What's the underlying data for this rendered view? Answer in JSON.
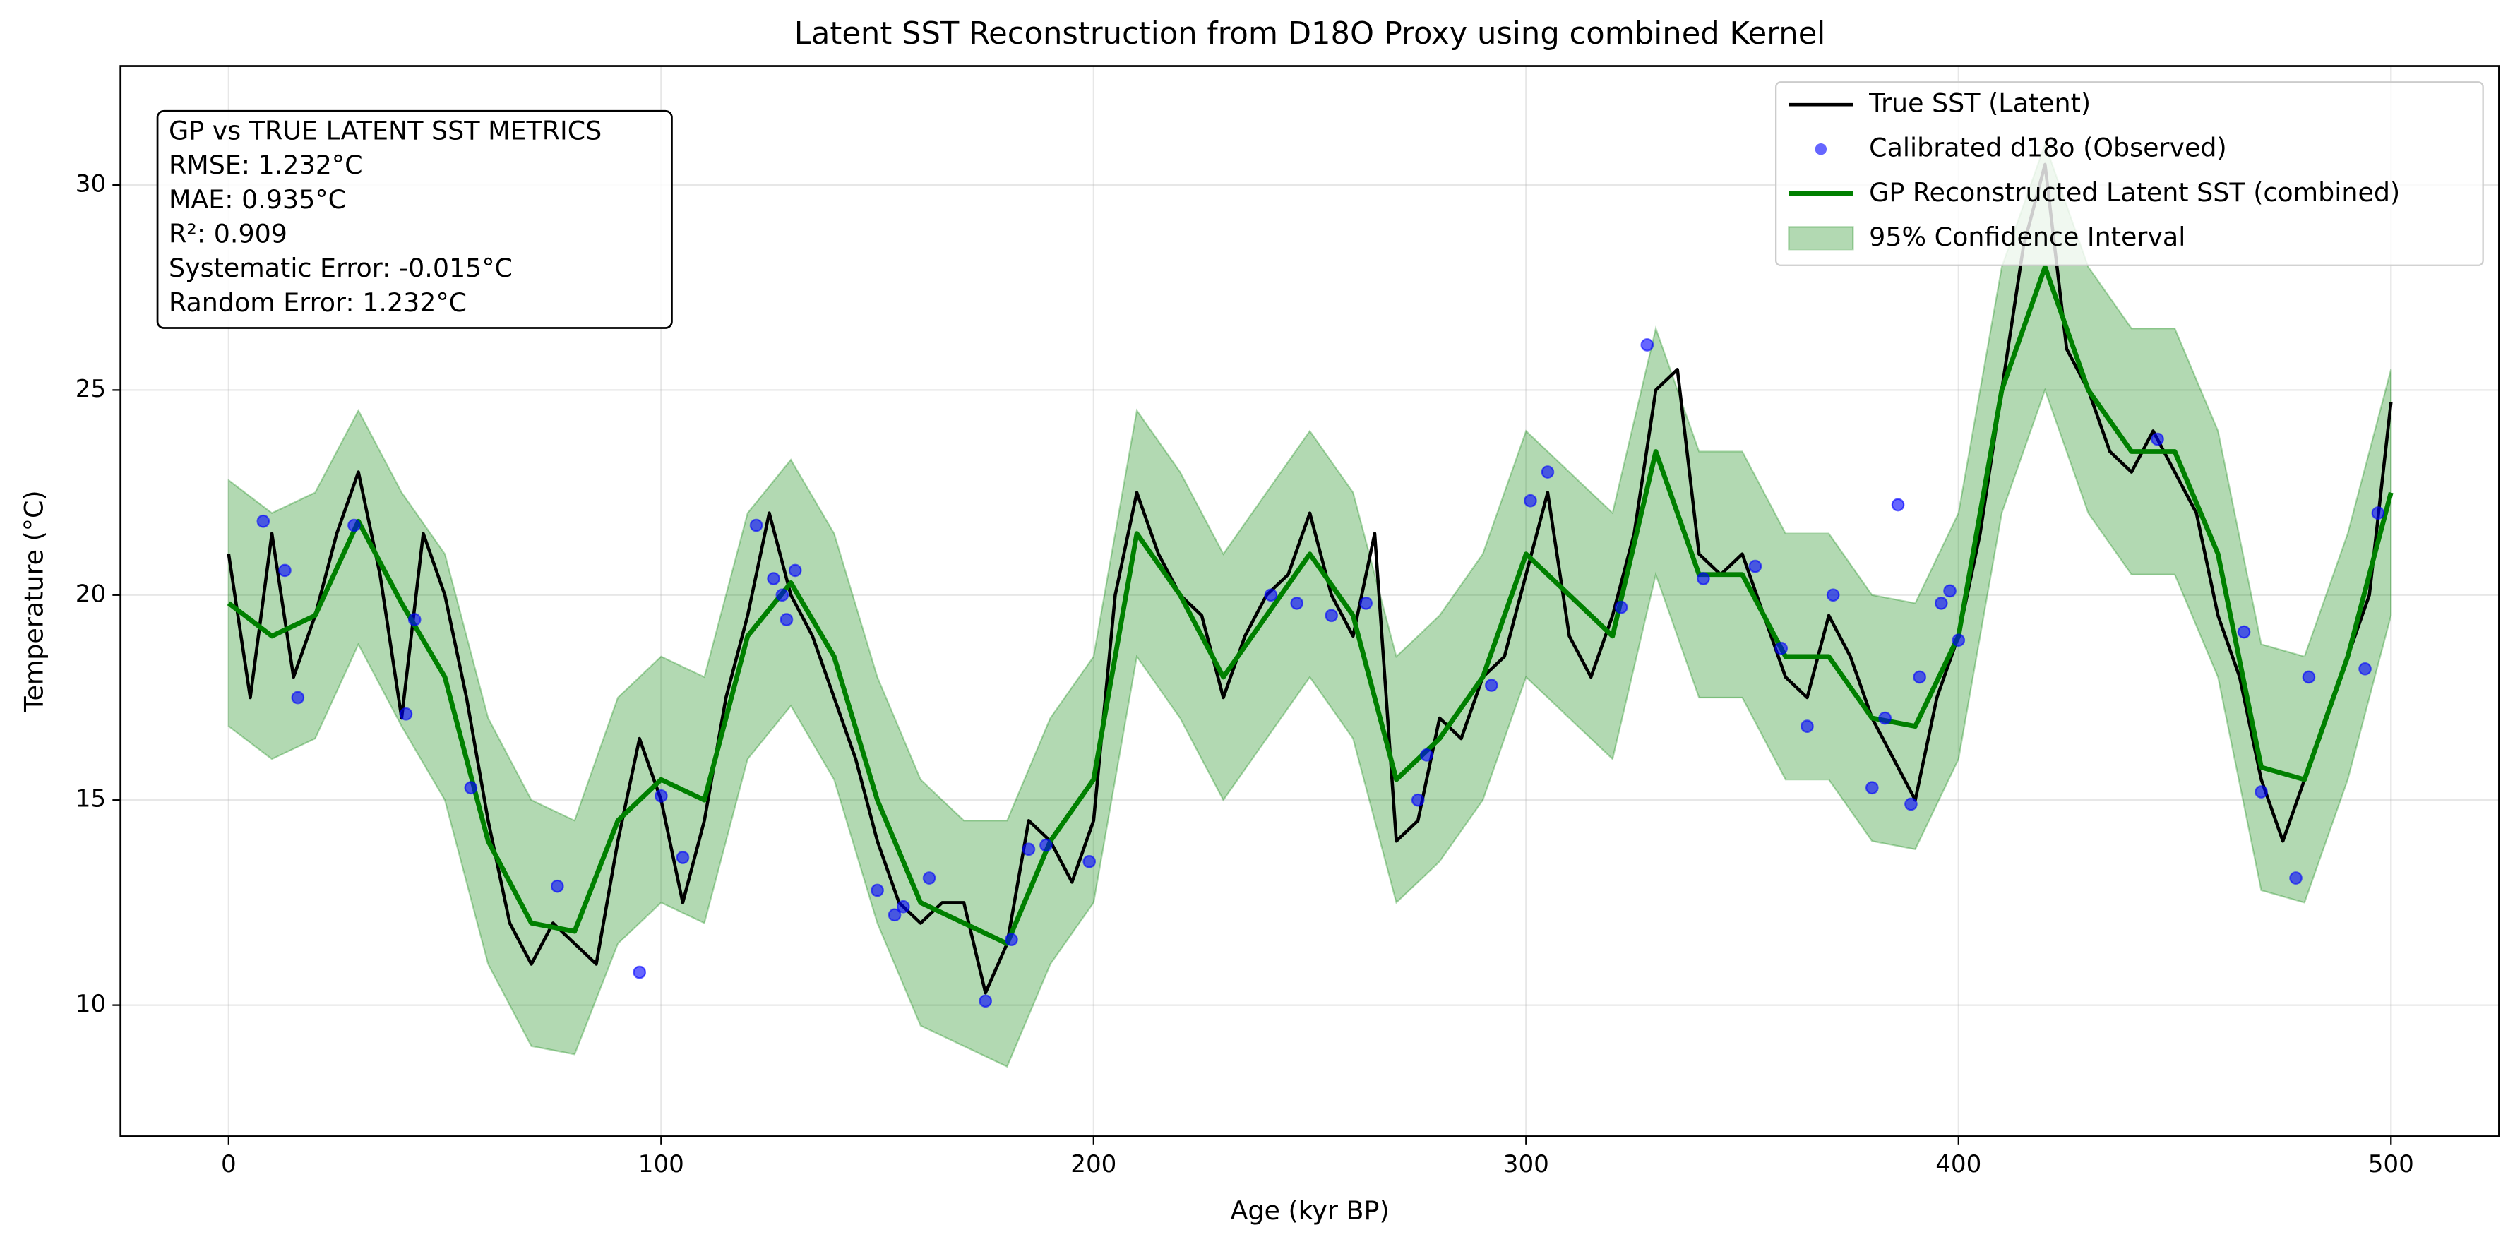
{
  "chart_data": {
    "type": "line",
    "title": "Latent SST Reconstruction from D18O Proxy using combined Kernel",
    "x_label": "Age (kyr BP)",
    "y_label": "Temperature (°C)",
    "xlim": [
      -25,
      525
    ],
    "ylim": [
      6.8,
      32.9
    ],
    "xticks": [
      0,
      100,
      200,
      300,
      400,
      500
    ],
    "yticks": [
      10,
      15,
      20,
      25,
      30
    ],
    "grid": true,
    "legend": "upper right",
    "annotations": [
      "GP vs TRUE LATENT SST METRICS",
      "RMSE: 1.232°C",
      "MAE: 0.935°C",
      "R²: 0.909",
      "Systematic Error: -0.015°C",
      "Random Error: 1.232°C"
    ],
    "series": [
      {
        "name": "True SST (Latent)",
        "kind": "line",
        "color": "#000000",
        "x": [
          0,
          5,
          10,
          15,
          20,
          25,
          30,
          35,
          40,
          45,
          50,
          55,
          60,
          65,
          70,
          75,
          80,
          85,
          90,
          95,
          100,
          105,
          110,
          115,
          120,
          125,
          130,
          135,
          140,
          145,
          150,
          155,
          160,
          165,
          170,
          175,
          180,
          185,
          190,
          195,
          200,
          205,
          210,
          215,
          220,
          225,
          230,
          235,
          240,
          245,
          250,
          255,
          260,
          265,
          270,
          275,
          280,
          285,
          290,
          295,
          300,
          305,
          310,
          315,
          320,
          325,
          330,
          335,
          340,
          345,
          350,
          355,
          360,
          365,
          370,
          375,
          380,
          385,
          390,
          395,
          400,
          405,
          410,
          415,
          420,
          425,
          430,
          435,
          440,
          445,
          450,
          455,
          460,
          465,
          470,
          475,
          480,
          485,
          490,
          495,
          500
        ],
        "values": [
          21.0,
          17.5,
          21.5,
          18.0,
          19.5,
          21.5,
          23.0,
          20.5,
          17.0,
          21.5,
          20.0,
          17.5,
          14.5,
          12.0,
          11.0,
          12.0,
          11.5,
          11.0,
          14.0,
          16.5,
          15.0,
          12.5,
          14.5,
          17.5,
          19.5,
          22.0,
          20.0,
          19.0,
          17.5,
          16.0,
          14.0,
          12.5,
          12.0,
          12.5,
          12.5,
          10.3,
          11.5,
          14.5,
          14.0,
          13.0,
          14.5,
          20.0,
          22.5,
          21.0,
          20.0,
          19.5,
          17.5,
          19.0,
          20.0,
          20.5,
          22.0,
          20.0,
          19.0,
          21.5,
          14.0,
          14.5,
          17.0,
          16.5,
          18.0,
          18.5,
          20.5,
          22.5,
          19.0,
          18.0,
          19.5,
          21.5,
          25.0,
          25.5,
          21.0,
          20.5,
          21.0,
          19.5,
          18.0,
          17.5,
          19.5,
          18.5,
          17.0,
          16.0,
          15.0,
          17.5,
          19.0,
          21.5,
          25.0,
          28.5,
          30.5,
          26.0,
          25.0,
          23.5,
          23.0,
          24.0,
          23.0,
          22.0,
          19.5,
          18.0,
          15.5,
          14.0,
          15.5,
          17.0,
          18.5,
          20.0,
          24.7
        ]
      },
      {
        "name": "Calibrated d18o (Observed)",
        "kind": "scatter",
        "color": "#0000ff",
        "x": [
          8,
          13,
          16,
          29,
          41,
          43,
          56,
          76,
          95,
          100,
          105,
          122,
          126,
          128,
          129,
          131,
          150,
          154,
          156,
          162,
          175,
          181,
          185,
          189,
          199,
          241,
          247,
          255,
          263,
          275,
          277,
          292,
          301,
          305,
          322,
          328,
          341,
          353,
          359,
          365,
          371,
          380,
          383,
          386,
          389,
          391,
          396,
          398,
          400,
          446,
          466,
          470,
          478,
          481,
          494,
          497
        ],
        "values": [
          21.8,
          20.6,
          17.5,
          21.7,
          17.1,
          19.4,
          15.3,
          12.9,
          10.8,
          15.1,
          13.6,
          21.7,
          20.4,
          20.0,
          19.4,
          20.6,
          12.8,
          12.2,
          12.4,
          13.1,
          10.1,
          11.6,
          13.8,
          13.9,
          13.5,
          20.0,
          19.8,
          19.5,
          19.8,
          15.0,
          16.1,
          17.8,
          22.3,
          23.0,
          19.7,
          26.1,
          20.4,
          20.7,
          18.7,
          16.8,
          20.0,
          15.3,
          17.0,
          22.2,
          14.9,
          18.0,
          19.8,
          20.1,
          18.9,
          23.8,
          19.1,
          15.2,
          13.1,
          18.0,
          18.2,
          22.0
        ]
      },
      {
        "name": "GP Reconstructed Latent SST (combined)",
        "kind": "line",
        "color": "#008000",
        "x": [
          0,
          10,
          20,
          30,
          40,
          50,
          60,
          70,
          80,
          90,
          100,
          110,
          120,
          130,
          140,
          150,
          160,
          170,
          180,
          190,
          200,
          210,
          220,
          230,
          240,
          250,
          260,
          270,
          280,
          290,
          300,
          310,
          320,
          330,
          340,
          350,
          360,
          370,
          380,
          390,
          400,
          410,
          420,
          430,
          440,
          450,
          460,
          470,
          480,
          490,
          500
        ],
        "values": [
          19.8,
          19.0,
          19.5,
          21.8,
          19.8,
          18.0,
          14.0,
          12.0,
          11.8,
          14.5,
          15.5,
          15.0,
          19.0,
          20.3,
          18.5,
          15.0,
          12.5,
          12.0,
          11.5,
          14.0,
          15.5,
          21.5,
          20.0,
          18.0,
          19.5,
          21.0,
          19.5,
          15.5,
          16.5,
          18.0,
          21.0,
          20.0,
          19.0,
          23.5,
          20.5,
          20.5,
          18.5,
          18.5,
          17.0,
          16.8,
          19.0,
          25.0,
          28.0,
          25.0,
          23.5,
          23.5,
          21.0,
          15.8,
          15.5,
          18.5,
          22.5
        ]
      },
      {
        "name": "95% Confidence Interval",
        "kind": "band",
        "color": "#008000",
        "x": [
          0,
          10,
          20,
          30,
          40,
          50,
          60,
          70,
          80,
          90,
          100,
          110,
          120,
          130,
          140,
          150,
          160,
          170,
          180,
          190,
          200,
          210,
          220,
          230,
          240,
          250,
          260,
          270,
          280,
          290,
          300,
          310,
          320,
          330,
          340,
          350,
          360,
          370,
          380,
          390,
          400,
          410,
          420,
          430,
          440,
          450,
          460,
          470,
          480,
          490,
          500
        ],
        "lower": [
          16.8,
          16.0,
          16.5,
          18.8,
          16.8,
          15.0,
          11.0,
          9.0,
          8.8,
          11.5,
          12.5,
          12.0,
          16.0,
          17.3,
          15.5,
          12.0,
          9.5,
          9.0,
          8.5,
          11.0,
          12.5,
          18.5,
          17.0,
          15.0,
          16.5,
          18.0,
          16.5,
          12.5,
          13.5,
          15.0,
          18.0,
          17.0,
          16.0,
          20.5,
          17.5,
          17.5,
          15.5,
          15.5,
          14.0,
          13.8,
          16.0,
          22.0,
          25.0,
          22.0,
          20.5,
          20.5,
          18.0,
          12.8,
          12.5,
          15.5,
          19.5
        ],
        "upper": [
          22.8,
          22.0,
          22.5,
          24.5,
          22.5,
          21.0,
          17.0,
          15.0,
          14.5,
          17.5,
          18.5,
          18.0,
          22.0,
          23.3,
          21.5,
          18.0,
          15.5,
          14.5,
          14.5,
          17.0,
          18.5,
          24.5,
          23.0,
          21.0,
          22.5,
          24.0,
          22.5,
          18.5,
          19.5,
          21.0,
          24.0,
          23.0,
          22.0,
          26.5,
          23.5,
          23.5,
          21.5,
          21.5,
          20.0,
          19.8,
          22.0,
          28.0,
          31.0,
          28.0,
          26.5,
          26.5,
          24.0,
          18.8,
          18.5,
          21.5,
          25.5
        ]
      }
    ]
  }
}
